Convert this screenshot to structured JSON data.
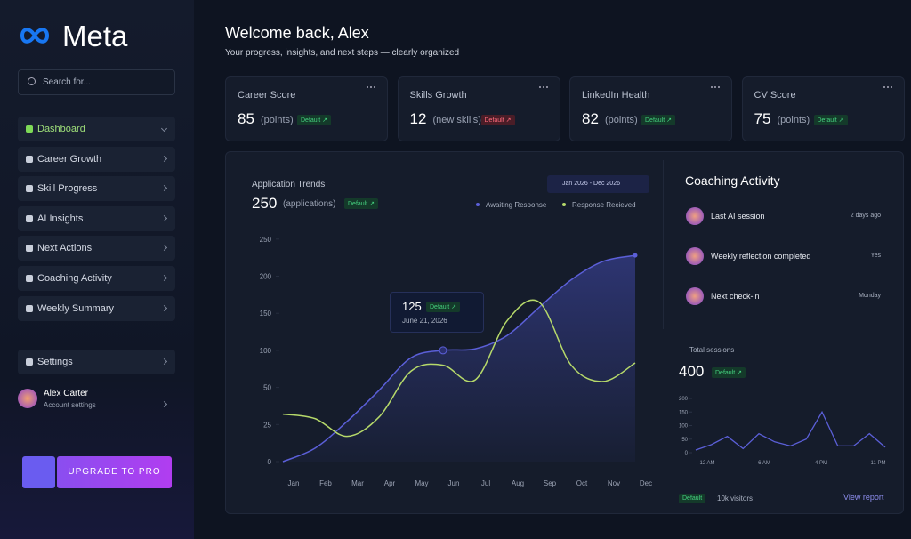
{
  "sidebar": {
    "brand": "Meta",
    "search": "Search for...",
    "nav": [
      "Dashboard",
      "Career Growth",
      "Skill Progress",
      "AI Insights",
      "Next Actions",
      "Coaching Activity",
      "Weekly Summary"
    ],
    "settings": "Settings",
    "user": {
      "name": "Alex Carter",
      "subtitle": "Account settings"
    },
    "upgrade": "UPGRADE TO PRO"
  },
  "header": {
    "title": "Welcome back, Alex",
    "subtitle": "Your progress, insights, and next steps — clearly organized"
  },
  "cards": [
    {
      "title": "Career Score",
      "value": 85,
      "unit": "(points)",
      "badge": "Default ↗"
    },
    {
      "title": "Skills Growth",
      "value": 12,
      "unit": "(new skills)",
      "badge": "Default ↗"
    },
    {
      "title": "LinkedIn Health",
      "value": 82,
      "unit": "(points)",
      "badge": "Default ↗"
    },
    {
      "title": "CV Score",
      "value": 75,
      "unit": "(points)",
      "badge": "Default ↗"
    }
  ],
  "trends": {
    "title": "Application Trends",
    "value": 250,
    "unit": "(applications)",
    "badge": "Default ↗",
    "date_range": "Jan 2026 - Dec 2026",
    "categories": [
      "Jan",
      "Feb",
      "Mar",
      "Apr",
      "May",
      "Jun",
      "Jul",
      "Aug",
      "Sep",
      "Oct",
      "Nov",
      "Dec"
    ],
    "series": [
      {
        "name": "Awaiting Response",
        "color": "#5b5fd8",
        "values": [
          0,
          9,
          27,
          48,
          90,
          100,
          102,
          120,
          158,
          195,
          220,
          228
        ]
      },
      {
        "name": "Response Recieved",
        "color": "#b6d96a",
        "values": [
          32,
          29,
          17,
          30,
          72,
          80,
          60,
          140,
          165,
          80,
          58,
          83
        ]
      }
    ],
    "yticks": [
      0,
      25,
      50,
      100,
      150,
      200,
      250
    ],
    "tooltip": {
      "value": 125,
      "badge": "Default ↗",
      "date": "June 21, 2026"
    }
  },
  "coaching": {
    "title": "Coaching Activity",
    "items": [
      {
        "label": "Last AI session",
        "time": "2 days ago"
      },
      {
        "label": "Weekly reflection completed",
        "time": "Yes"
      },
      {
        "label": "Next check-in",
        "time": "Monday"
      }
    ],
    "sessions": {
      "title": "Total sessions",
      "value": 400,
      "badge": "Default ↗",
      "values": [
        10,
        30,
        60,
        15,
        70,
        40,
        25,
        50,
        150,
        25,
        25,
        70,
        20
      ],
      "yticks": [
        0,
        50,
        100,
        150,
        200
      ],
      "ylim": [
        0,
        200
      ],
      "xlabels": [
        "12 AM",
        "6 AM",
        "4 PM",
        "11 PM"
      ]
    },
    "footer": {
      "badge": "Default",
      "visitors": "10k visitors",
      "link": "View report"
    }
  }
}
